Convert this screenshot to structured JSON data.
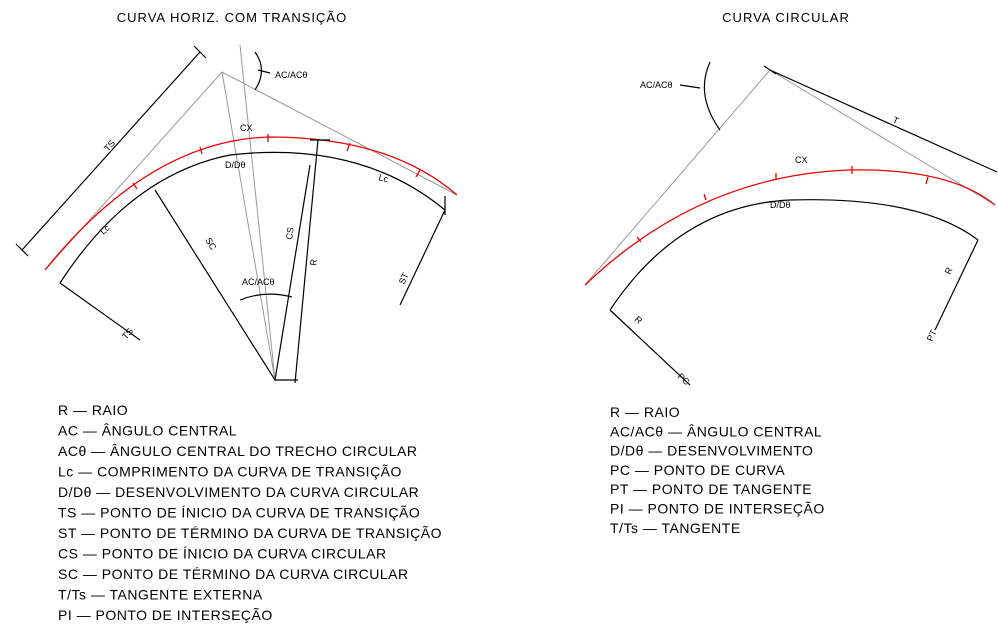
{
  "left": {
    "title": "CURVA HORIZ. COM TRANSIÇÃO",
    "labels": {
      "angle_top": "AC/ACθ",
      "ts_dim": "TS",
      "cx": "CX",
      "d": "D/Dθ",
      "lc_left": "Lc",
      "lc_right": "Lc",
      "sc": "SC",
      "cs": "CS",
      "r": "R",
      "st": "ST",
      "angle_center": "AC/ACθ",
      "ts_bottom": "TS"
    },
    "legend": [
      "R — RAIO",
      "AC — ÂNGULO CENTRAL",
      "ACθ — ÂNGULO CENTRAL DO TRECHO CIRCULAR",
      "Lc — COMPRIMENTO DA CURVA  DE TRANSIÇÃO",
      "D/Dθ — DESENVOLVIMENTO DA CURVA CIRCULAR",
      "TS — PONTO DE ÍNICIO DA CURVA DE TRANSIÇÃO",
      "ST — PONTO DE TÉRMINO DA CURVA DE TRANSIÇÃO",
      "CS — PONTO DE ÍNICIO DA CURVA CIRCULAR",
      "SC — PONTO DE TÉRMINO DA CURVA CIRCULAR",
      "T/Ts — TANGENTE EXTERNA",
      "PI — PONTO DE INTERSEÇÃO"
    ]
  },
  "right": {
    "title": "CURVA CIRCULAR",
    "labels": {
      "angle": "AC/ACθ",
      "t": "T",
      "cx": "CX",
      "d": "D/Dθ",
      "r_right": "R",
      "r_left": "R",
      "pt": "PT",
      "pc": "PC"
    },
    "legend": [
      "R — RAIO",
      "AC/ACθ — ÂNGULO CENTRAL",
      "D/Dθ — DESENVOLVIMENTO",
      "PC — PONTO DE CURVA",
      "PT — PONTO DE TANGENTE",
      "PI — PONTO DE INTERSEÇÃO",
      "T/Ts — TANGENTE"
    ]
  }
}
